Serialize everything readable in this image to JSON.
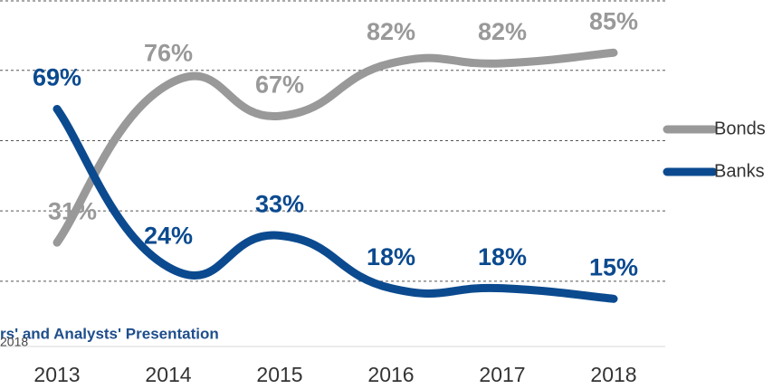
{
  "chart_data": {
    "type": "line",
    "categories": [
      "2013",
      "2014",
      "2015",
      "2016",
      "2017",
      "2018"
    ],
    "series": [
      {
        "name": "Bonds",
        "color": "#999999",
        "values": [
          31,
          76,
          67,
          82,
          82,
          85
        ],
        "value_labels": [
          "31%",
          "76%",
          "67%",
          "82%",
          "82%",
          "85%"
        ]
      },
      {
        "name": "Banks",
        "color": "#0b4a8f",
        "values": [
          69,
          24,
          33,
          18,
          18,
          15
        ],
        "value_labels": [
          "69%",
          "24%",
          "33%",
          "18%",
          "18%",
          "15%"
        ]
      }
    ],
    "ylim": [
      0,
      100
    ],
    "yticks": [
      20,
      40,
      60,
      80,
      100
    ],
    "grid": true,
    "legend": "right",
    "footer": {
      "title": "rs' and Analysts' Presentation",
      "date": "2018"
    }
  }
}
